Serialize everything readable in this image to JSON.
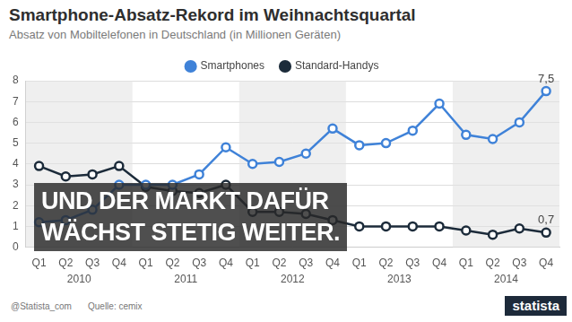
{
  "chart_data": {
    "type": "line",
    "title": "Smartphone-Absatz-Rekord im Weihnachtsquartal",
    "subtitle": "Absatz von Mobiltelefonen in Deutschland (in Millionen Geräten)",
    "categories": [
      "Q1",
      "Q2",
      "Q3",
      "Q4",
      "Q1",
      "Q2",
      "Q3",
      "Q4",
      "Q1",
      "Q2",
      "Q3",
      "Q4",
      "Q1",
      "Q2",
      "Q3",
      "Q4",
      "Q1",
      "Q2",
      "Q3",
      "Q4"
    ],
    "x_groups": [
      "2010",
      "2011",
      "2012",
      "2013",
      "2014"
    ],
    "series": [
      {
        "name": "Smartphones",
        "color": "#3f82d8",
        "values": [
          1.2,
          1.3,
          1.8,
          3.0,
          3.0,
          3.0,
          3.5,
          4.8,
          4.0,
          4.1,
          4.5,
          5.7,
          4.9,
          5.0,
          5.6,
          6.9,
          5.4,
          5.2,
          6.0,
          7.5
        ],
        "value_labels": [
          null,
          null,
          null,
          null,
          null,
          null,
          null,
          null,
          null,
          null,
          null,
          null,
          null,
          null,
          null,
          null,
          null,
          null,
          null,
          "7,5"
        ]
      },
      {
        "name": "Standard-Handys",
        "color": "#1c2b3a",
        "values": [
          3.9,
          3.4,
          3.5,
          3.9,
          2.9,
          2.7,
          2.6,
          3.0,
          1.7,
          1.7,
          1.6,
          1.3,
          1.0,
          1.0,
          1.0,
          1.0,
          0.8,
          0.6,
          0.9,
          0.7
        ],
        "value_labels": [
          null,
          null,
          null,
          null,
          null,
          null,
          null,
          null,
          null,
          null,
          null,
          null,
          null,
          null,
          null,
          null,
          null,
          null,
          null,
          "0,7"
        ]
      }
    ],
    "ylim": [
      0,
      8
    ],
    "yticks": [
      0,
      1,
      2,
      3,
      4,
      5,
      6,
      7,
      8
    ],
    "grid": true,
    "legend": "top",
    "data_labels": true,
    "marker": "circle"
  },
  "overlay": {
    "lines": [
      "UND DER MARKT DAFÜR",
      "WÄCHST STETIG WEITER."
    ]
  },
  "footer": {
    "handle": "@Statista_com",
    "source": "Quelle: cemix",
    "logo": "statista"
  }
}
